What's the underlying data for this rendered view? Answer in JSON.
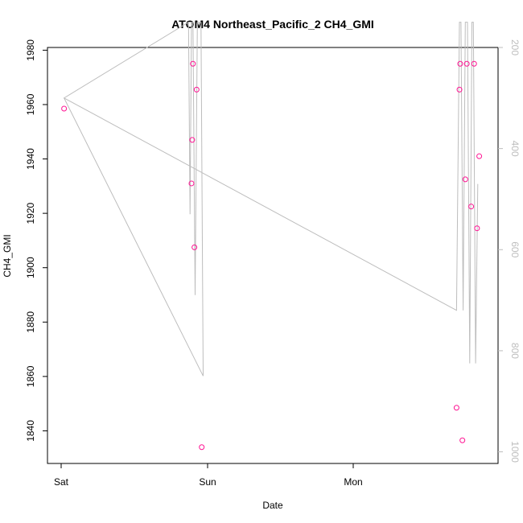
{
  "chart_data": {
    "type": "scatter",
    "title": "ATOM4 Northeast_Pacific_2 CH4_GMI",
    "xlabel": "Date",
    "ylabel": "CH4_GMI",
    "x_ticks": [
      "Sat",
      "Sun",
      "Mon"
    ],
    "y_ticks": [
      1840,
      1860,
      1880,
      1900,
      1920,
      1940,
      1960,
      1980
    ],
    "ylim": [
      1828,
      1981
    ],
    "y2_ticks": [
      200,
      400,
      600,
      800,
      1000
    ],
    "y2lim": [
      1023,
      200
    ],
    "y2_reversed": true,
    "grid": false,
    "legend": "none",
    "colors": {
      "points": "#ff1493",
      "line": "#bdbdbd",
      "axis": "#000000",
      "right_axis": "#bdbdbd"
    },
    "series": [
      {
        "type": "scatter",
        "points": [
          {
            "x": 0.02,
            "y": 1958.5
          },
          {
            "x": 0.89,
            "y": 1931.0
          },
          {
            "x": 0.895,
            "y": 1947.0
          },
          {
            "x": 0.9,
            "y": 1975.0
          },
          {
            "x": 0.91,
            "y": 1907.5
          },
          {
            "x": 0.925,
            "y": 1965.5
          },
          {
            "x": 0.96,
            "y": 1834.0
          },
          {
            "x": 2.7,
            "y": 1848.5
          },
          {
            "x": 2.72,
            "y": 1965.5
          },
          {
            "x": 2.725,
            "y": 1975.0
          },
          {
            "x": 2.74,
            "y": 1836.5
          },
          {
            "x": 2.76,
            "y": 1932.5
          },
          {
            "x": 2.77,
            "y": 1975.0
          },
          {
            "x": 2.8,
            "y": 1922.5
          },
          {
            "x": 2.82,
            "y": 1975.0
          },
          {
            "x": 2.84,
            "y": 1914.5
          },
          {
            "x": 2.855,
            "y": 1941.0
          }
        ]
      },
      {
        "type": "line",
        "axis": "right",
        "points": [
          {
            "x": 0.02,
            "y": 300
          },
          {
            "x": 0.97,
            "y": 850
          },
          {
            "x": 0.955,
            "y": 150
          },
          {
            "x": 0.93,
            "y": 150
          },
          {
            "x": 0.915,
            "y": 690
          },
          {
            "x": 0.9,
            "y": 150
          },
          {
            "x": 0.89,
            "y": 150
          },
          {
            "x": 0.88,
            "y": 530
          },
          {
            "x": 0.87,
            "y": 150
          },
          {
            "x": 0.02,
            "y": 300
          },
          {
            "x": 2.7,
            "y": 720
          },
          {
            "x": 2.72,
            "y": 150
          },
          {
            "x": 2.73,
            "y": 150
          },
          {
            "x": 2.745,
            "y": 720
          },
          {
            "x": 2.76,
            "y": 150
          },
          {
            "x": 2.775,
            "y": 150
          },
          {
            "x": 2.79,
            "y": 825
          },
          {
            "x": 2.805,
            "y": 150
          },
          {
            "x": 2.815,
            "y": 150
          },
          {
            "x": 2.83,
            "y": 825
          },
          {
            "x": 2.845,
            "y": 470
          }
        ]
      }
    ]
  }
}
